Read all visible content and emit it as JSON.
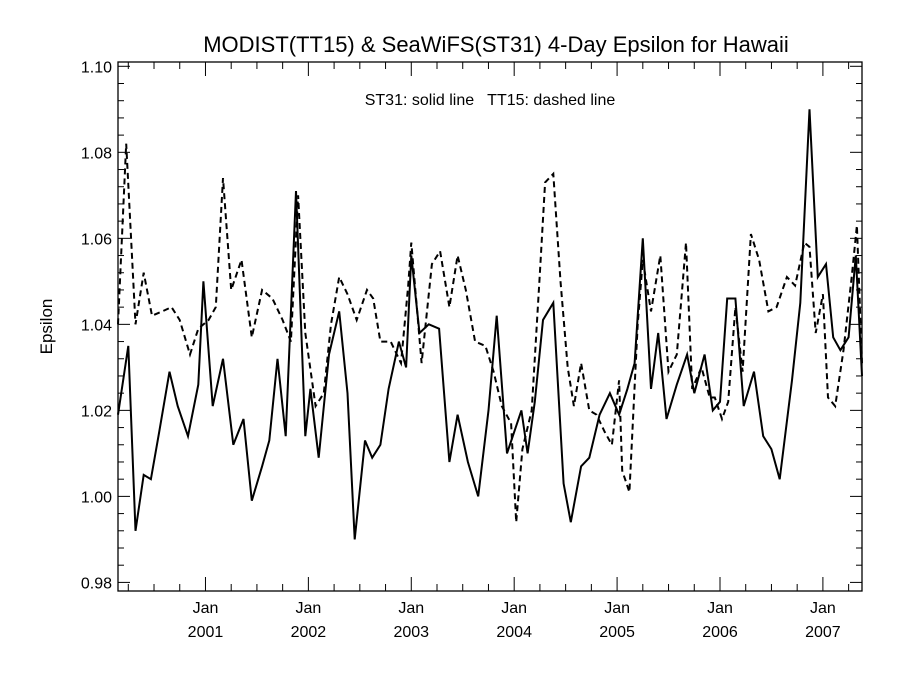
{
  "chart_data": {
    "type": "line",
    "title": "MODIST(TT15) & SeaWiFS(ST31) 4-Day Epsilon for Hawaii",
    "annotation": "ST31: solid line   TT15: dashed line",
    "xlabel": "",
    "ylabel": "Epsilon",
    "xlim": [
      2000.15,
      2007.38
    ],
    "ylim": [
      0.978,
      1.101
    ],
    "y_ticks": [
      0.98,
      1.0,
      1.02,
      1.04,
      1.06,
      1.08,
      1.1
    ],
    "y_tick_labels": [
      "0.98",
      "1.00",
      "1.02",
      "1.04",
      "1.06",
      "1.08",
      "1.10"
    ],
    "x_ticks": [
      {
        "x": 2001.0,
        "month": "Jan",
        "year": "2001"
      },
      {
        "x": 2002.0,
        "month": "Jan",
        "year": "2002"
      },
      {
        "x": 2003.0,
        "month": "Jan",
        "year": "2003"
      },
      {
        "x": 2004.0,
        "month": "Jan",
        "year": "2004"
      },
      {
        "x": 2005.0,
        "month": "Jan",
        "year": "2005"
      },
      {
        "x": 2006.0,
        "month": "Jan",
        "year": "2006"
      },
      {
        "x": 2007.0,
        "month": "Jan",
        "year": "2007"
      }
    ],
    "grid": false,
    "series": [
      {
        "name": "ST31",
        "style": "solid",
        "color": "#000000",
        "points": [
          [
            2000.15,
            1.019
          ],
          [
            2000.25,
            1.035
          ],
          [
            2000.32,
            0.992
          ],
          [
            2000.4,
            1.005
          ],
          [
            2000.47,
            1.004
          ],
          [
            2000.55,
            1.015
          ],
          [
            2000.65,
            1.029
          ],
          [
            2000.73,
            1.021
          ],
          [
            2000.83,
            1.014
          ],
          [
            2000.93,
            1.026
          ],
          [
            2000.98,
            1.05
          ],
          [
            2001.07,
            1.021
          ],
          [
            2001.17,
            1.032
          ],
          [
            2001.27,
            1.012
          ],
          [
            2001.37,
            1.018
          ],
          [
            2001.45,
            0.999
          ],
          [
            2001.55,
            1.007
          ],
          [
            2001.62,
            1.013
          ],
          [
            2001.7,
            1.032
          ],
          [
            2001.78,
            1.014
          ],
          [
            2001.88,
            1.071
          ],
          [
            2001.97,
            1.014
          ],
          [
            2002.02,
            1.025
          ],
          [
            2002.1,
            1.009
          ],
          [
            2002.2,
            1.033
          ],
          [
            2002.3,
            1.043
          ],
          [
            2002.38,
            1.024
          ],
          [
            2002.45,
            0.99
          ],
          [
            2002.55,
            1.013
          ],
          [
            2002.62,
            1.009
          ],
          [
            2002.7,
            1.012
          ],
          [
            2002.78,
            1.025
          ],
          [
            2002.88,
            1.036
          ],
          [
            2002.95,
            1.03
          ],
          [
            2003.0,
            1.056
          ],
          [
            2003.08,
            1.038
          ],
          [
            2003.17,
            1.04
          ],
          [
            2003.27,
            1.039
          ],
          [
            2003.37,
            1.008
          ],
          [
            2003.45,
            1.019
          ],
          [
            2003.55,
            1.008
          ],
          [
            2003.65,
            1.0
          ],
          [
            2003.75,
            1.02
          ],
          [
            2003.83,
            1.042
          ],
          [
            2003.93,
            1.01
          ],
          [
            2004.0,
            1.015
          ],
          [
            2004.07,
            1.02
          ],
          [
            2004.13,
            1.01
          ],
          [
            2004.2,
            1.022
          ],
          [
            2004.28,
            1.041
          ],
          [
            2004.38,
            1.045
          ],
          [
            2004.48,
            1.003
          ],
          [
            2004.55,
            0.994
          ],
          [
            2004.65,
            1.007
          ],
          [
            2004.73,
            1.009
          ],
          [
            2004.83,
            1.019
          ],
          [
            2004.93,
            1.024
          ],
          [
            2005.02,
            1.019
          ],
          [
            2005.1,
            1.025
          ],
          [
            2005.17,
            1.031
          ],
          [
            2005.25,
            1.06
          ],
          [
            2005.33,
            1.025
          ],
          [
            2005.4,
            1.038
          ],
          [
            2005.48,
            1.018
          ],
          [
            2005.58,
            1.026
          ],
          [
            2005.68,
            1.033
          ],
          [
            2005.75,
            1.024
          ],
          [
            2005.85,
            1.033
          ],
          [
            2005.93,
            1.02
          ],
          [
            2006.0,
            1.022
          ],
          [
            2006.07,
            1.046
          ],
          [
            2006.15,
            1.046
          ],
          [
            2006.23,
            1.021
          ],
          [
            2006.33,
            1.029
          ],
          [
            2006.42,
            1.014
          ],
          [
            2006.5,
            1.011
          ],
          [
            2006.58,
            1.004
          ],
          [
            2006.7,
            1.027
          ],
          [
            2006.78,
            1.045
          ],
          [
            2006.87,
            1.09
          ],
          [
            2006.95,
            1.051
          ],
          [
            2007.03,
            1.054
          ],
          [
            2007.1,
            1.037
          ],
          [
            2007.17,
            1.034
          ],
          [
            2007.25,
            1.037
          ],
          [
            2007.32,
            1.056
          ],
          [
            2007.38,
            1.028
          ]
        ]
      },
      {
        "name": "TT15",
        "style": "dashed",
        "color": "#000000",
        "points": [
          [
            2000.15,
            1.04
          ],
          [
            2000.23,
            1.082
          ],
          [
            2000.32,
            1.04
          ],
          [
            2000.4,
            1.052
          ],
          [
            2000.48,
            1.042
          ],
          [
            2000.58,
            1.043
          ],
          [
            2000.67,
            1.044
          ],
          [
            2000.75,
            1.041
          ],
          [
            2000.85,
            1.033
          ],
          [
            2000.93,
            1.039
          ],
          [
            2001.03,
            1.041
          ],
          [
            2001.1,
            1.044
          ],
          [
            2001.17,
            1.074
          ],
          [
            2001.25,
            1.048
          ],
          [
            2001.35,
            1.055
          ],
          [
            2001.45,
            1.037
          ],
          [
            2001.55,
            1.048
          ],
          [
            2001.65,
            1.046
          ],
          [
            2001.75,
            1.041
          ],
          [
            2001.83,
            1.036
          ],
          [
            2001.9,
            1.07
          ],
          [
            2001.97,
            1.038
          ],
          [
            2002.07,
            1.021
          ],
          [
            2002.15,
            1.024
          ],
          [
            2002.22,
            1.04
          ],
          [
            2002.3,
            1.051
          ],
          [
            2002.38,
            1.047
          ],
          [
            2002.47,
            1.041
          ],
          [
            2002.57,
            1.048
          ],
          [
            2002.63,
            1.046
          ],
          [
            2002.7,
            1.036
          ],
          [
            2002.8,
            1.036
          ],
          [
            2002.9,
            1.031
          ],
          [
            2002.97,
            1.049
          ],
          [
            2003.0,
            1.059
          ],
          [
            2003.1,
            1.031
          ],
          [
            2003.2,
            1.054
          ],
          [
            2003.28,
            1.057
          ],
          [
            2003.37,
            1.044
          ],
          [
            2003.45,
            1.056
          ],
          [
            2003.53,
            1.048
          ],
          [
            2003.62,
            1.036
          ],
          [
            2003.72,
            1.035
          ],
          [
            2003.8,
            1.029
          ],
          [
            2003.88,
            1.021
          ],
          [
            2003.97,
            1.017
          ],
          [
            2004.02,
            0.994
          ],
          [
            2004.08,
            1.011
          ],
          [
            2004.17,
            1.02
          ],
          [
            2004.25,
            1.052
          ],
          [
            2004.3,
            1.073
          ],
          [
            2004.38,
            1.075
          ],
          [
            2004.45,
            1.05
          ],
          [
            2004.52,
            1.03
          ],
          [
            2004.58,
            1.021
          ],
          [
            2004.65,
            1.031
          ],
          [
            2004.73,
            1.02
          ],
          [
            2004.8,
            1.019
          ],
          [
            2004.88,
            1.015
          ],
          [
            2004.95,
            1.012
          ],
          [
            2005.02,
            1.027
          ],
          [
            2005.05,
            1.006
          ],
          [
            2005.12,
            1.001
          ],
          [
            2005.2,
            1.04
          ],
          [
            2005.25,
            1.055
          ],
          [
            2005.33,
            1.043
          ],
          [
            2005.42,
            1.056
          ],
          [
            2005.5,
            1.029
          ],
          [
            2005.58,
            1.033
          ],
          [
            2005.67,
            1.059
          ],
          [
            2005.73,
            1.025
          ],
          [
            2005.82,
            1.03
          ],
          [
            2005.9,
            1.023
          ],
          [
            2005.95,
            1.023
          ],
          [
            2006.02,
            1.018
          ],
          [
            2006.08,
            1.022
          ],
          [
            2006.15,
            1.044
          ],
          [
            2006.22,
            1.029
          ],
          [
            2006.3,
            1.061
          ],
          [
            2006.38,
            1.055
          ],
          [
            2006.47,
            1.043
          ],
          [
            2006.55,
            1.044
          ],
          [
            2006.65,
            1.051
          ],
          [
            2006.73,
            1.049
          ],
          [
            2006.82,
            1.059
          ],
          [
            2006.87,
            1.058
          ],
          [
            2006.93,
            1.038
          ],
          [
            2007.0,
            1.047
          ],
          [
            2007.05,
            1.023
          ],
          [
            2007.12,
            1.021
          ],
          [
            2007.2,
            1.034
          ],
          [
            2007.28,
            1.051
          ],
          [
            2007.33,
            1.063
          ],
          [
            2007.38,
            1.031
          ]
        ]
      }
    ]
  }
}
